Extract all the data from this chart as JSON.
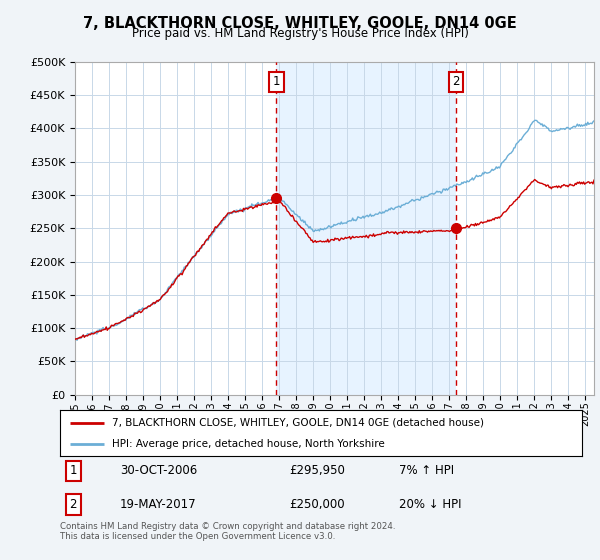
{
  "title": "7, BLACKTHORN CLOSE, WHITLEY, GOOLE, DN14 0GE",
  "subtitle": "Price paid vs. HM Land Registry's House Price Index (HPI)",
  "ytick_values": [
    0,
    50000,
    100000,
    150000,
    200000,
    250000,
    300000,
    350000,
    400000,
    450000,
    500000
  ],
  "ylim": [
    0,
    500000
  ],
  "xlim_start": 1995.0,
  "xlim_end": 2025.5,
  "hpi_color": "#6baed6",
  "hpi_shade_color": "#ddeeff",
  "price_color": "#cc0000",
  "marker1_date": 2006.83,
  "marker1_price": 295950,
  "marker1_label": "30-OCT-2006",
  "marker1_amount": "£295,950",
  "marker1_hpi_pct": "7% ↑ HPI",
  "marker1_num": "1",
  "marker2_date": 2017.38,
  "marker2_price": 250000,
  "marker2_label": "19-MAY-2017",
  "marker2_amount": "£250,000",
  "marker2_hpi_pct": "20% ↓ HPI",
  "marker2_num": "2",
  "legend_line1": "7, BLACKTHORN CLOSE, WHITLEY, GOOLE, DN14 0GE (detached house)",
  "legend_line2": "HPI: Average price, detached house, North Yorkshire",
  "footnote": "Contains HM Land Registry data © Crown copyright and database right 2024.\nThis data is licensed under the Open Government Licence v3.0.",
  "background_color": "#f0f4f8",
  "plot_background": "#ffffff",
  "grid_color": "#c8d8e8"
}
